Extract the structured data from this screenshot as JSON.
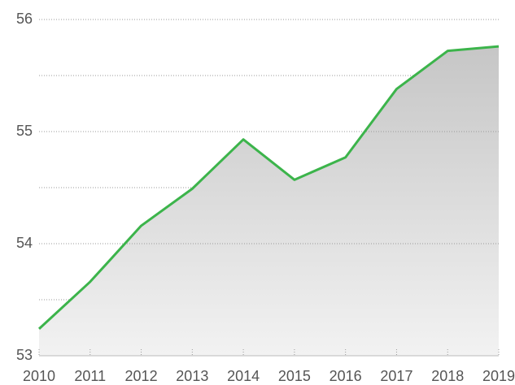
{
  "chart_data": {
    "type": "area",
    "x": [
      "2010",
      "2011",
      "2012",
      "2013",
      "2014",
      "2015",
      "2016",
      "2017",
      "2018",
      "2019"
    ],
    "series": [
      {
        "color": "#3cb44b",
        "values": [
          53.24,
          53.66,
          54.16,
          54.49,
          54.93,
          54.57,
          54.77,
          55.38,
          55.72,
          55.76
        ]
      }
    ],
    "ylim": [
      53,
      56
    ],
    "yticks": [
      53,
      54,
      55,
      56
    ],
    "minor_grid": [
      53.5,
      54.5,
      55.5
    ],
    "grid": true
  }
}
